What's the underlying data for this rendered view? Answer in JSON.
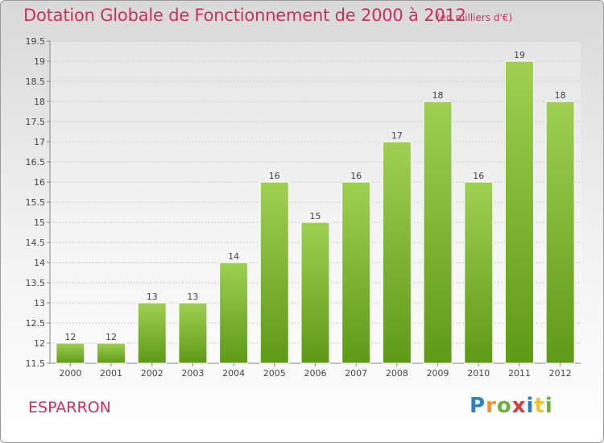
{
  "header": {
    "title": "Dotation Globale de Fonctionnement de 2000 à 2012",
    "unit": "(en milliers d'€)"
  },
  "footer": {
    "commune": "ESPARRON",
    "logo": "Proxiti"
  },
  "colors": {
    "title": "#c8325a",
    "bar_top": "#9fd052",
    "bar_bottom": "#5e9a16"
  },
  "chart_data": {
    "type": "bar",
    "categories": [
      "2000",
      "2001",
      "2002",
      "2003",
      "2004",
      "2005",
      "2006",
      "2007",
      "2008",
      "2009",
      "2010",
      "2011",
      "2012"
    ],
    "values": [
      12,
      12,
      13,
      13,
      14,
      16,
      15,
      16,
      17,
      18,
      16,
      19,
      18
    ],
    "data_labels": [
      "12",
      "12",
      "13",
      "13",
      "14",
      "16",
      "15",
      "16",
      "17",
      "18",
      "16",
      "19",
      "18"
    ],
    "ylim": [
      11.5,
      19.5
    ],
    "yticks": [
      "11.5",
      "12",
      "12.5",
      "13",
      "13.5",
      "14",
      "14.5",
      "15",
      "15.5",
      "16",
      "16.5",
      "17",
      "17.5",
      "18",
      "18.5",
      "19",
      "19.5"
    ],
    "grid": true
  }
}
